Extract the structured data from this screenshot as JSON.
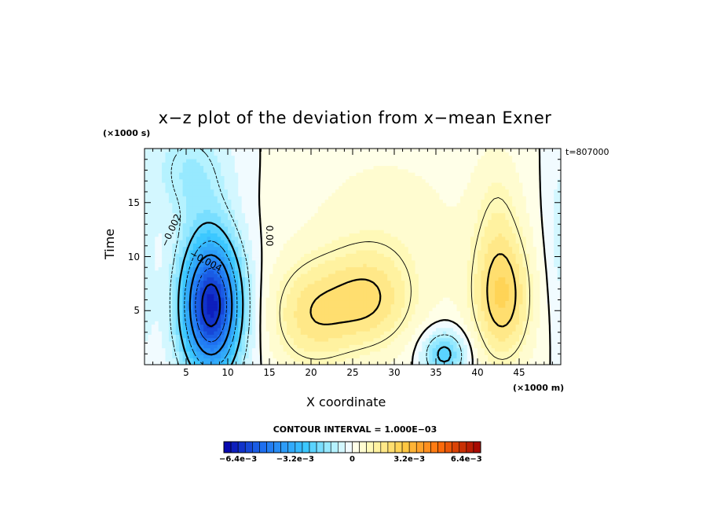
{
  "chart_data": {
    "type": "heatmap",
    "title": "x−z plot of the deviation from x−mean Exner",
    "xlabel": "X coordinate",
    "ylabel": "Time",
    "x_unit_label": "(×1000 m)",
    "y_unit_label": "(×1000 s)",
    "timestamp": "t=807000",
    "xlim": [
      0,
      50
    ],
    "ylim": [
      0,
      20
    ],
    "x_ticks": [
      5,
      10,
      15,
      20,
      25,
      30,
      35,
      40,
      45
    ],
    "y_ticks": [
      5,
      10,
      15
    ],
    "contour_interval": "CONTOUR INTERVAL = 1.000E−03",
    "contour_labels": [
      "−0.002",
      "−0.004",
      "0.00"
    ],
    "colorbar": {
      "min": -0.0072,
      "max": 0.0072,
      "step": 0.0004,
      "tick_labels": [
        "−6.4e−3",
        "−3.2e−3",
        "0",
        "3.2e−3",
        "6.4e−3"
      ],
      "tick_values": [
        -0.0064,
        -0.0032,
        0,
        0.0032,
        0.0064
      ]
    },
    "features": [
      {
        "kind": "min",
        "x": 8,
        "y": 5.5,
        "value": -0.0066
      },
      {
        "kind": "max",
        "x": 20,
        "y": 4.5,
        "value": 0.0016
      },
      {
        "kind": "max",
        "x": 27,
        "y": 6,
        "value": 0.0016
      },
      {
        "kind": "max",
        "x": 43,
        "y": 6,
        "value": 0.0022
      },
      {
        "kind": "min",
        "x": 36,
        "y": 1,
        "value": -0.0005
      }
    ]
  }
}
